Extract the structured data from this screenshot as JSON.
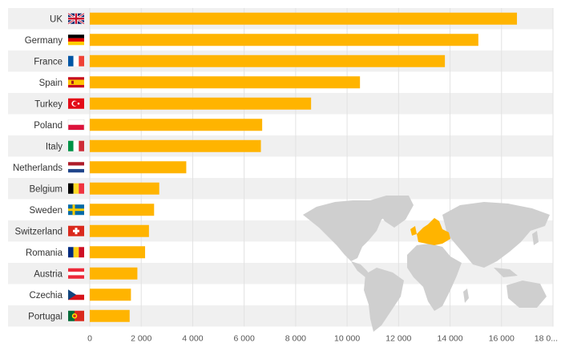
{
  "chart_data": {
    "type": "bar",
    "orientation": "horizontal",
    "categories": [
      "UK",
      "Germany",
      "France",
      "Spain",
      "Turkey",
      "Poland",
      "Italy",
      "Netherlands",
      "Belgium",
      "Sweden",
      "Switzerland",
      "Romania",
      "Austria",
      "Czechia",
      "Portugal"
    ],
    "values": [
      16600,
      15100,
      13800,
      10500,
      8600,
      6700,
      6650,
      3750,
      2700,
      2500,
      2300,
      2150,
      1850,
      1600,
      1550
    ],
    "xlim": [
      0,
      18000
    ],
    "xticks": [
      0,
      2000,
      4000,
      6000,
      8000,
      10000,
      12000,
      14000,
      16000
    ],
    "xtick_labels": [
      "0",
      "2 000",
      "4 000",
      "6 000",
      "8 000",
      "10 000",
      "12 000",
      "14 000",
      "16 000"
    ],
    "truncated_tick_label": "18 0...",
    "grid": "vertical",
    "bar_color": "#FFB400",
    "row_stripe_color": "#F0F0F0",
    "title": "",
    "xlabel": "",
    "ylabel": "",
    "flags": [
      "uk-flag-icon",
      "germany-flag-icon",
      "france-flag-icon",
      "spain-flag-icon",
      "turkey-flag-icon",
      "poland-flag-icon",
      "italy-flag-icon",
      "netherlands-flag-icon",
      "belgium-flag-icon",
      "sweden-flag-icon",
      "switzerland-flag-icon",
      "romania-flag-icon",
      "austria-flag-icon",
      "czechia-flag-icon",
      "portugal-flag-icon"
    ],
    "inset_map": {
      "icon": "world-map-icon",
      "base_color": "#CFCFCF",
      "highlight_color": "#FFB400",
      "highlighted_region": "Europe"
    }
  }
}
